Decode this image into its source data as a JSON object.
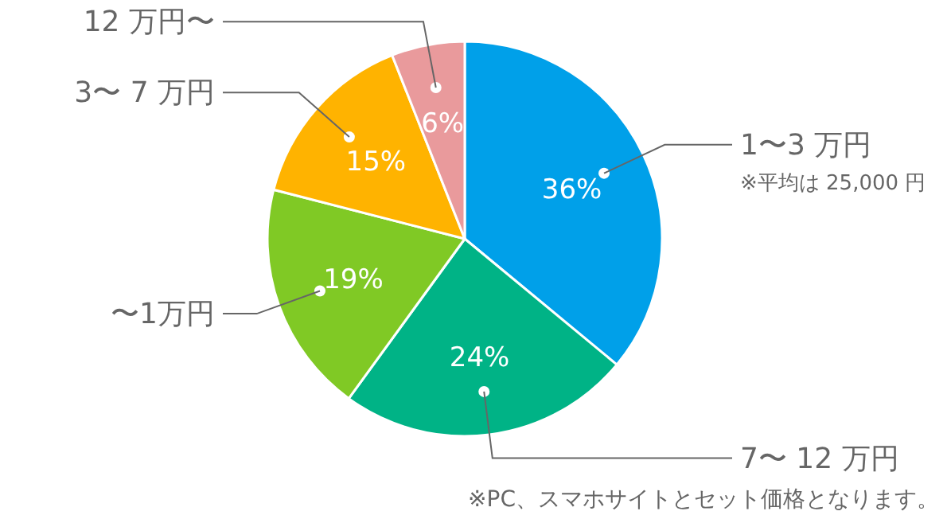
{
  "chart_data": {
    "type": "pie",
    "categories": [
      "1〜3 万円",
      "7〜 12 万円",
      "〜1万円",
      "3〜 7 万円",
      "12 万円〜"
    ],
    "values": [
      36,
      24,
      19,
      15,
      6
    ],
    "value_labels": [
      "36%",
      "24%",
      "19%",
      "15%",
      "6%"
    ],
    "colors": [
      "#00a0e9",
      "#00b386",
      "#80c925",
      "#ffb300",
      "#e99a9c"
    ],
    "annotations": [
      "※平均は 25,000 円",
      "※PC、スマホサイトとセット価格となります。"
    ]
  }
}
